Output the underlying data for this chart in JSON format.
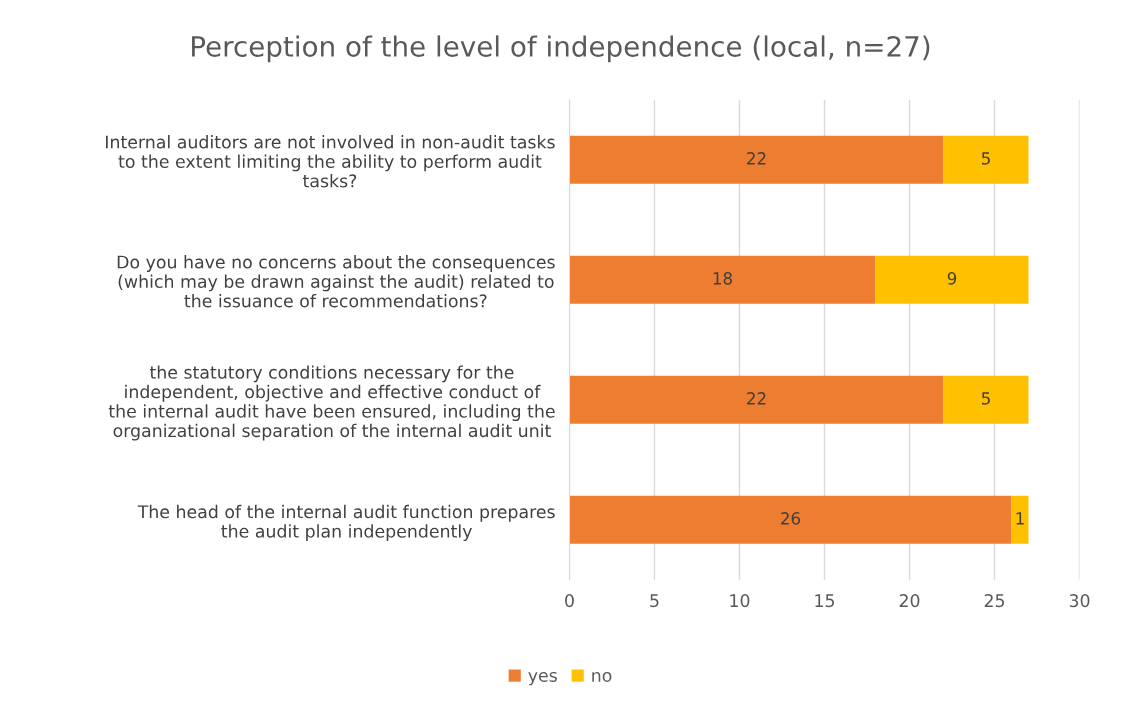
{
  "chart_data": {
    "type": "bar",
    "orientation": "horizontal",
    "stacked": true,
    "title": "Perception of the level of independence (local, n=27)",
    "categories": [
      "Internal auditors are not involved in non-audit tasks\nto the extent limiting the ability to perform audit\ntasks?",
      "Do you have no concerns about the consequences\n(which may be drawn against the audit) related to\nthe issuance of recommendations?",
      "the statutory conditions necessary for the\nindependent, objective and effective conduct of\nthe internal audit have been ensured, including the\norganizational separation of the internal audit unit",
      "The head of the internal audit function prepares\nthe audit plan independently"
    ],
    "series": [
      {
        "name": "yes",
        "color": "#ed7d31",
        "values": [
          22,
          18,
          22,
          26
        ]
      },
      {
        "name": "no",
        "color": "#ffc000",
        "values": [
          5,
          9,
          5,
          1
        ]
      }
    ],
    "xlim": [
      0,
      30
    ],
    "xticks": [
      0,
      5,
      10,
      15,
      20,
      25,
      30
    ],
    "grid": "x",
    "legend": "bottom",
    "data_labels": true
  }
}
